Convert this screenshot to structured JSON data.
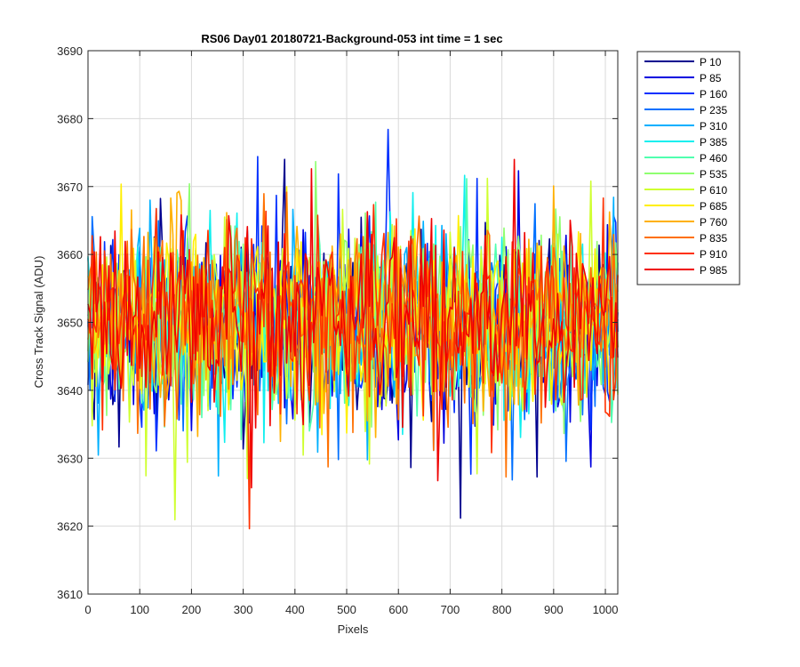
{
  "chart_data": {
    "type": "line",
    "title": "RS06 Day01 20180721-Background-053 int time = 1 sec",
    "xlabel": "Pixels",
    "ylabel": "Cross Track Signal (ADU)",
    "xlim": [
      0,
      1024
    ],
    "ylim": [
      3610,
      3690
    ],
    "x_ticks": [
      0,
      100,
      200,
      300,
      400,
      500,
      600,
      700,
      800,
      900,
      1000
    ],
    "y_ticks": [
      3610,
      3620,
      3630,
      3640,
      3650,
      3660,
      3670,
      3680,
      3690
    ],
    "grid": true,
    "legend_position": "outside-right",
    "signal_model": {
      "x_range": [
        0,
        1024
      ],
      "x_step": 4,
      "mean": 3649,
      "typical_half_range": 11,
      "observed_min": 3616,
      "observed_max": 3683
    },
    "series": [
      {
        "name": "P 10",
        "color": "#00008f"
      },
      {
        "name": "P 85",
        "color": "#0000df"
      },
      {
        "name": "P 160",
        "color": "#0030ff"
      },
      {
        "name": "P 235",
        "color": "#0070ff"
      },
      {
        "name": "P 310",
        "color": "#00b0ff"
      },
      {
        "name": "P 385",
        "color": "#10efef"
      },
      {
        "name": "P 460",
        "color": "#50ffaf"
      },
      {
        "name": "P 535",
        "color": "#8fff70"
      },
      {
        "name": "P 610",
        "color": "#cfff30"
      },
      {
        "name": "P 685",
        "color": "#ffef00"
      },
      {
        "name": "P 760",
        "color": "#ffb000"
      },
      {
        "name": "P 835",
        "color": "#ff7000"
      },
      {
        "name": "P 910",
        "color": "#ff3000"
      },
      {
        "name": "P 985",
        "color": "#ef0000"
      }
    ]
  }
}
